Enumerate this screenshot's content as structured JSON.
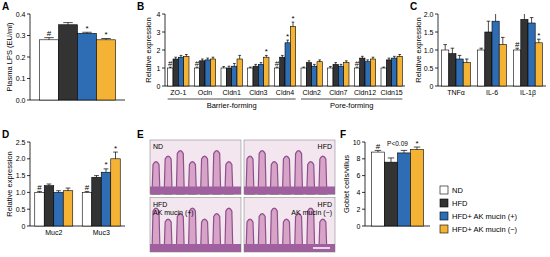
{
  "chart_data": [
    {
      "panel": "A",
      "type": "bar",
      "y_label": "Plasma LPS (EU/ml)",
      "categories": [
        null
      ],
      "ylim": [
        0,
        0.4
      ],
      "yticks": [
        {
          "value": 0,
          "label": "0.0"
        },
        0.1,
        0.2,
        0.3,
        0.4
      ],
      "series": [
        {
          "color": "#ffffff",
          "values": [
            0.28
          ],
          "errors": [
            0.01
          ],
          "annotations": [
            "#"
          ]
        },
        {
          "color": "#333333",
          "values": [
            0.35
          ],
          "errors": [
            0.01
          ],
          "annotations": [
            null
          ]
        },
        {
          "color": "#2e6db4",
          "values": [
            0.31
          ],
          "errors": [
            0.005
          ],
          "annotations": [
            "*"
          ]
        },
        {
          "color": "#f5b335",
          "values": [
            0.28
          ],
          "errors": [
            0.006
          ],
          "annotations": [
            "*"
          ]
        }
      ]
    },
    {
      "panel": "B",
      "type": "bar",
      "y_label": "Relative expression",
      "categories": [
        "ZO-1",
        "Ocln",
        "Cldn1",
        "Cldn3",
        "Cldn4",
        "Cldn2",
        "Cldn7",
        "Cldn12",
        "Cldn15"
      ],
      "groups": [
        {
          "label": "Barrier-forming",
          "start": "ZO-1",
          "end": "Cldn4"
        },
        {
          "label": "Pore-forming",
          "start": "Cldn2",
          "end": "Cldn15"
        }
      ],
      "ylim": [
        0,
        4
      ],
      "yticks": [
        0,
        1,
        2,
        3,
        4
      ],
      "series": [
        {
          "color": "#ffffff",
          "values": [
            1,
            1,
            1,
            1,
            1,
            1,
            1,
            1,
            1
          ],
          "errors": [
            0.05,
            0.05,
            0.08,
            0.05,
            0.05,
            0.05,
            0.08,
            0.05,
            0.05
          ],
          "annotations": [
            "#",
            "#",
            null,
            null,
            "#",
            null,
            null,
            "#",
            null
          ]
        },
        {
          "color": "#333333",
          "values": [
            1.5,
            1.4,
            1.0,
            1.1,
            1.6,
            1.3,
            1.2,
            1.55,
            1.45
          ],
          "errors": [
            0.1,
            0.1,
            0.1,
            0.1,
            0.1,
            0.1,
            0.1,
            0.1,
            0.1
          ],
          "annotations": [
            null,
            null,
            null,
            null,
            null,
            null,
            null,
            null,
            null
          ]
        },
        {
          "color": "#2e6db4",
          "values": [
            1.6,
            1.45,
            1.1,
            1.2,
            2.4,
            1.1,
            1.1,
            1.35,
            1.55
          ],
          "errors": [
            0.1,
            0.1,
            0.15,
            0.1,
            0.15,
            0.1,
            0.1,
            0.1,
            0.1
          ],
          "annotations": [
            null,
            null,
            null,
            null,
            "*",
            null,
            null,
            null,
            null
          ]
        },
        {
          "color": "#f5b335",
          "values": [
            1.65,
            1.5,
            1.5,
            1.6,
            3.3,
            1.35,
            1.3,
            1.5,
            1.65
          ],
          "errors": [
            0.1,
            0.1,
            0.2,
            0.1,
            0.25,
            0.1,
            0.1,
            0.1,
            0.1
          ],
          "annotations": [
            null,
            null,
            null,
            "*",
            "*",
            null,
            null,
            null,
            null
          ]
        }
      ]
    },
    {
      "panel": "C",
      "type": "bar",
      "y_label": "Relative expression",
      "categories": [
        "TNFα",
        "IL-6",
        "IL-1β"
      ],
      "ylim": [
        0,
        2
      ],
      "yticks": [
        0,
        0.5,
        {
          "value": 1,
          "label": "1.0"
        },
        1.5,
        {
          "value": 2,
          "label": "2.0"
        }
      ],
      "series": [
        {
          "color": "#ffffff",
          "values": [
            1.0,
            1.0,
            1.0
          ],
          "errors": [
            0.15,
            0.05,
            0.05
          ],
          "annotations": [
            null,
            null,
            "#"
          ]
        },
        {
          "color": "#333333",
          "values": [
            0.9,
            1.5,
            1.85
          ],
          "errors": [
            0.15,
            0.3,
            0.2
          ],
          "annotations": [
            null,
            null,
            null
          ]
        },
        {
          "color": "#2e6db4",
          "values": [
            0.75,
            1.8,
            1.75
          ],
          "errors": [
            0.1,
            0.3,
            0.15
          ],
          "annotations": [
            null,
            null,
            null
          ]
        },
        {
          "color": "#f5b335",
          "values": [
            0.65,
            1.15,
            1.2
          ],
          "errors": [
            0.1,
            0.2,
            0.1
          ],
          "annotations": [
            null,
            null,
            "*"
          ]
        }
      ]
    },
    {
      "panel": "D",
      "type": "bar",
      "y_label": "Relative expression",
      "categories": [
        "Muc2",
        "Muc3"
      ],
      "ylim": [
        0,
        2.5
      ],
      "yticks": [
        0,
        0.5,
        {
          "value": 1,
          "label": "1.0"
        },
        1.5,
        {
          "value": 2,
          "label": "2.0"
        },
        2.5
      ],
      "series": [
        {
          "color": "#ffffff",
          "values": [
            1.0,
            1.0
          ],
          "errors": [
            0.03,
            0.03
          ],
          "annotations": [
            "#",
            "#"
          ]
        },
        {
          "color": "#333333",
          "values": [
            1.2,
            1.45
          ],
          "errors": [
            0.05,
            0.05
          ],
          "annotations": [
            null,
            null
          ]
        },
        {
          "color": "#2e6db4",
          "values": [
            1.0,
            1.6
          ],
          "errors": [
            0.05,
            0.1
          ],
          "annotations": [
            null,
            "*"
          ]
        },
        {
          "color": "#f5b335",
          "values": [
            1.05,
            2.0
          ],
          "errors": [
            0.08,
            0.2
          ],
          "annotations": [
            null,
            "*"
          ]
        }
      ]
    },
    {
      "panel": "E",
      "type": "image",
      "labels": [
        [
          "ND"
        ],
        [
          "HFD"
        ],
        [
          "HFD",
          "AK mucin (+)"
        ],
        [
          "HFD",
          "AK mucin (−)"
        ]
      ]
    },
    {
      "panel": "F",
      "type": "bar",
      "y_label": "Goblet cells/villus",
      "categories": [
        null
      ],
      "ylim": [
        0,
        10
      ],
      "yticks": [
        0,
        2,
        4,
        6,
        8,
        10
      ],
      "annotation": "P<0.09",
      "series": [
        {
          "color": "#ffffff",
          "values": [
            8.8
          ],
          "errors": [
            0.2
          ],
          "annotations": [
            "#"
          ]
        },
        {
          "color": "#333333",
          "values": [
            7.6
          ],
          "errors": [
            0.5
          ],
          "annotations": [
            null
          ]
        },
        {
          "color": "#2e6db4",
          "values": [
            8.7
          ],
          "errors": [
            0.3
          ],
          "annotations": [
            null
          ]
        },
        {
          "color": "#f5b335",
          "values": [
            9.1
          ],
          "errors": [
            0.3
          ],
          "annotations": [
            "*"
          ]
        }
      ]
    }
  ],
  "legend": [
    {
      "name": "ND",
      "color": "#ffffff"
    },
    {
      "name": "HFD",
      "color": "#333333"
    },
    {
      "name": "HFD+ AK mucin (+)",
      "color": "#2e6db4"
    },
    {
      "name": "HFD+ AK mucin (−)",
      "color": "#f5b335"
    }
  ]
}
